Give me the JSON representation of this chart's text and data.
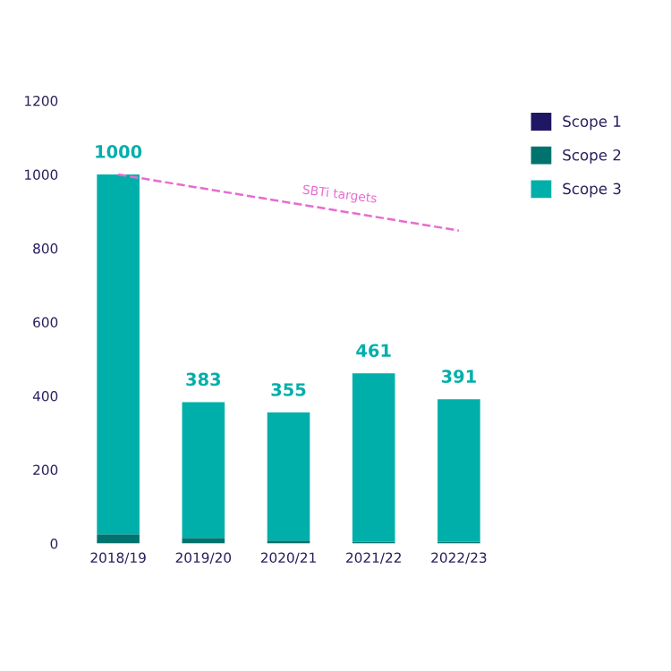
{
  "chart_data": {
    "type": "bar",
    "stacked": true,
    "categories": [
      "2018/19",
      "2019/20",
      "2020/21",
      "2021/22",
      "2022/23"
    ],
    "series": [
      {
        "name": "Scope 1",
        "color": "#1f1763",
        "values": [
          null,
          null,
          null,
          null,
          null
        ]
      },
      {
        "name": "Scope 2",
        "color": "#00736f",
        "values": [
          25,
          15,
          8,
          4,
          4
        ]
      },
      {
        "name": "Scope 3",
        "color": "#00afaa",
        "values": [
          975,
          368,
          347,
          457,
          387
        ]
      },
      {
        "name": "SBTi targets",
        "type": "line",
        "line_style": "dashed",
        "color": "#e86bd0",
        "x": [
          "2018/19",
          "2022/23"
        ],
        "values": [
          1000,
          848
        ]
      }
    ],
    "totals": [
      "1000",
      "383",
      "355",
      "461",
      "391"
    ],
    "ylim": [
      0,
      1200
    ],
    "yticks": [
      0,
      200,
      400,
      600,
      800,
      1000,
      1200
    ],
    "grid": false,
    "legend": "top right"
  }
}
